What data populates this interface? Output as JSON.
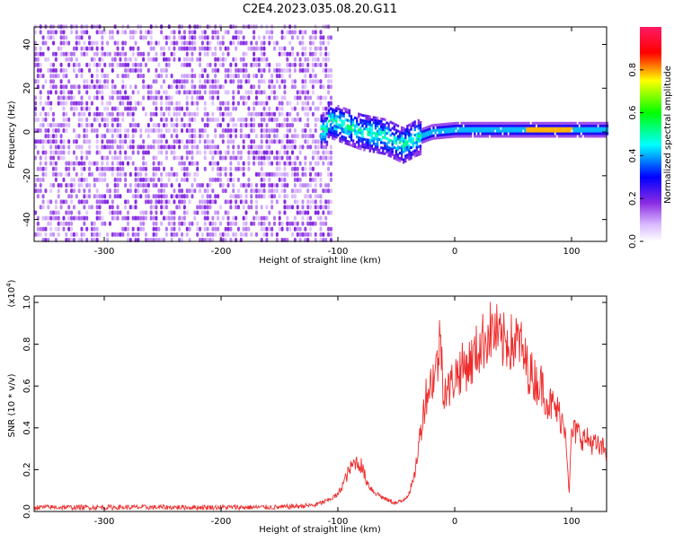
{
  "title": "C2E4.2023.035.08.20.G11",
  "chart_data": [
    {
      "type": "heatmap",
      "panel": "spectrogram",
      "xlabel": "Height of straight line (km)",
      "ylabel": "Frequency (Hz)",
      "xlim": [
        -360,
        130
      ],
      "ylim": [
        -50,
        48
      ],
      "xticks": [
        -300,
        -200,
        -100,
        0,
        100
      ],
      "xtick_labels": [
        "-300",
        "-200",
        "-100",
        "0",
        "100"
      ],
      "yticks": [
        -40,
        -20,
        0,
        20,
        40
      ],
      "ytick_labels": [
        "-40",
        "-20",
        "0",
        "20",
        "40"
      ],
      "colorbar": {
        "label": "Normalized spectral amplitude",
        "range": [
          0,
          1
        ],
        "ticks": [
          0.0,
          0.2,
          0.4,
          0.6,
          0.8
        ],
        "tick_labels": [
          "0.0",
          "0.2",
          "0.4",
          "0.6",
          "0.8"
        ],
        "colormap": [
          "#ffffff",
          "#8a2be2",
          "#0000ff",
          "#00ffff",
          "#00ff00",
          "#ffff00",
          "#ff0000",
          "#ff0066"
        ]
      },
      "features": {
        "noise_region_x": [
          -360,
          -105
        ],
        "signal_centerline": [
          [
            -110,
            6
          ],
          [
            -100,
            4
          ],
          [
            -80,
            0
          ],
          [
            -60,
            -2
          ],
          [
            -45,
            -6
          ],
          [
            -35,
            -3
          ],
          [
            -20,
            0
          ],
          [
            0,
            1
          ],
          [
            50,
            1
          ],
          [
            100,
            1
          ],
          [
            130,
            1
          ]
        ],
        "peak_x_range": [
          60,
          100
        ]
      }
    },
    {
      "type": "line",
      "panel": "snr",
      "xlabel": "Height of straight line (km)",
      "ylabel": "SNR (10 * v/v)",
      "y_multiplier_label": "(x10",
      "y_multiplier_exp": "4",
      "xlim": [
        -360,
        130
      ],
      "ylim": [
        0,
        1.03
      ],
      "xticks": [
        -300,
        -200,
        -100,
        0,
        100
      ],
      "xtick_labels": [
        "-300",
        "-200",
        "-100",
        "0",
        "100"
      ],
      "yticks": [
        0.0,
        0.2,
        0.4,
        0.6,
        0.8,
        1.0
      ],
      "ytick_labels": [
        "0.0",
        "0.2",
        "0.4",
        "0.6",
        "0.8",
        "1.0"
      ],
      "color": "#ee2c2c",
      "series": [
        {
          "x": [
            -360,
            -300,
            -250,
            -200,
            -150,
            -120,
            -110,
            -100,
            -95,
            -90,
            -85,
            -80,
            -75,
            -70,
            -65,
            -60,
            -55,
            -50,
            -45,
            -40,
            -35,
            -30,
            -25,
            -20,
            -15,
            -12,
            -10,
            -5,
            0,
            5,
            10,
            15,
            20,
            25,
            30,
            35,
            40,
            45,
            50,
            55,
            60,
            65,
            70,
            75,
            80,
            85,
            90,
            95,
            98,
            100,
            105,
            110,
            115,
            120,
            125,
            130
          ],
          "y": [
            0.02,
            0.02,
            0.02,
            0.02,
            0.02,
            0.03,
            0.05,
            0.08,
            0.14,
            0.2,
            0.24,
            0.22,
            0.14,
            0.1,
            0.08,
            0.06,
            0.05,
            0.04,
            0.05,
            0.08,
            0.15,
            0.35,
            0.55,
            0.62,
            0.7,
            0.85,
            0.6,
            0.58,
            0.65,
            0.68,
            0.7,
            0.72,
            0.78,
            0.82,
            0.86,
            0.86,
            0.8,
            0.82,
            0.8,
            0.82,
            0.72,
            0.66,
            0.62,
            0.6,
            0.52,
            0.5,
            0.46,
            0.4,
            0.08,
            0.38,
            0.38,
            0.35,
            0.34,
            0.32,
            0.3,
            0.3
          ]
        }
      ]
    }
  ]
}
